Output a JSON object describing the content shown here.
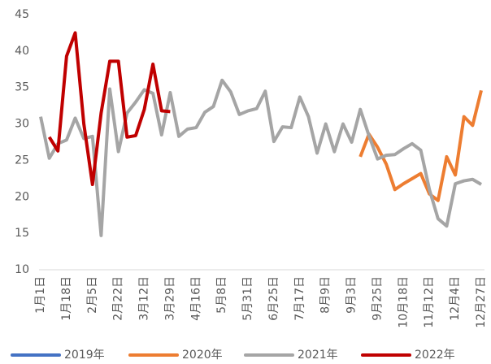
{
  "chart_data": {
    "type": "line",
    "categories": [
      "1月1日",
      null,
      null,
      "1月18日",
      null,
      null,
      "2月5日",
      null,
      null,
      "2月22日",
      null,
      null,
      "3月12日",
      null,
      null,
      "3月29日",
      null,
      null,
      "4月16日",
      null,
      null,
      "5月8日",
      null,
      null,
      "5月31日",
      null,
      null,
      "6月25日",
      null,
      null,
      "7月17日",
      null,
      null,
      "8月9日",
      null,
      null,
      "9月3日",
      null,
      null,
      "9月25日",
      null,
      null,
      "10月18日",
      null,
      null,
      "11月12日",
      null,
      null,
      "12月4日",
      null,
      null,
      "12月27日"
    ],
    "series": [
      {
        "name": "2019年",
        "color": "#4472c4",
        "values": [
          null,
          null,
          null,
          null,
          null,
          null,
          null,
          null,
          null,
          null,
          null,
          null,
          null,
          null,
          null,
          null,
          null,
          null,
          null,
          null,
          null,
          null,
          null,
          null,
          null,
          null,
          null,
          null,
          null,
          null,
          null,
          null,
          null,
          null,
          null,
          null,
          null,
          null,
          null,
          null,
          null,
          null,
          null,
          null,
          null,
          null,
          null,
          null,
          null,
          null,
          null,
          null
        ]
      },
      {
        "name": "2020年",
        "color": "#ed7d31",
        "values": [
          null,
          null,
          null,
          null,
          null,
          null,
          null,
          null,
          null,
          null,
          null,
          null,
          null,
          null,
          null,
          null,
          null,
          null,
          null,
          null,
          null,
          null,
          null,
          null,
          null,
          null,
          null,
          null,
          null,
          null,
          null,
          null,
          null,
          null,
          null,
          null,
          null,
          25.5,
          28.6,
          26.8,
          24.5,
          21,
          21.8,
          22.5,
          23.2,
          20.4,
          19.5,
          25.5,
          23,
          31,
          29.8,
          34.6
        ]
      },
      {
        "name": "2021年",
        "color": "#a5a5a5",
        "values": [
          31,
          25.3,
          27.3,
          27.8,
          30.8,
          28,
          28.3,
          14.7,
          34.8,
          26.2,
          31.5,
          33,
          34.7,
          34.2,
          28.5,
          34.3,
          28.3,
          29.3,
          29.5,
          31.6,
          32.4,
          36,
          34.4,
          31.3,
          31.8,
          32.1,
          34.5,
          27.6,
          29.6,
          29.5,
          33.7,
          31,
          26,
          30,
          26.2,
          30,
          27.5,
          32,
          28.4,
          25.2,
          25.7,
          25.8,
          26.6,
          27.3,
          26.4,
          21,
          17,
          16,
          21.8,
          22.2,
          22.4,
          21.7
        ]
      },
      {
        "name": "2022年",
        "color": "#c00000",
        "values": [
          null,
          28.2,
          26.3,
          39.3,
          42.5,
          30,
          21.7,
          31.5,
          38.6,
          38.6,
          28.2,
          28.4,
          32,
          38.2,
          31.8,
          31.7,
          null,
          null,
          null,
          null,
          null,
          null,
          null,
          null,
          null,
          null,
          null,
          null,
          null,
          null,
          null,
          null,
          null,
          null,
          null,
          null,
          null,
          null,
          null,
          null,
          null,
          null,
          null,
          null,
          null,
          null,
          null,
          null,
          null,
          null,
          null,
          null
        ]
      }
    ],
    "ylim": [
      10,
      45
    ],
    "yticks": [
      10,
      15,
      20,
      25,
      30,
      35,
      40,
      45
    ],
    "grid": false
  }
}
